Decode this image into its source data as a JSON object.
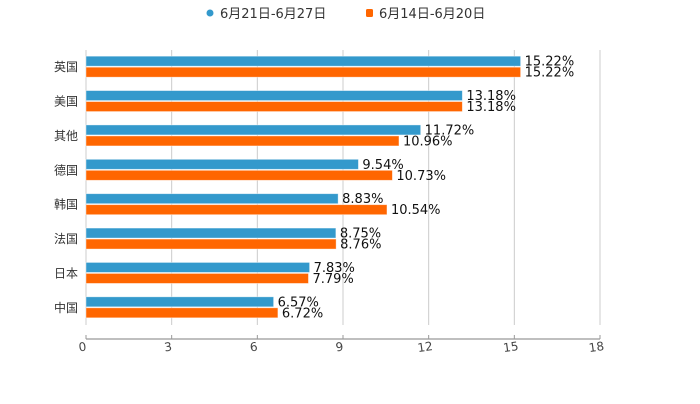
{
  "chart_data": {
    "type": "bar",
    "orientation": "horizontal",
    "categories": [
      "英国",
      "美国",
      "其他",
      "德国",
      "韩国",
      "法国",
      "日本",
      "中国"
    ],
    "series": [
      {
        "name": "6月21日-6月27日",
        "color": "#3399cc",
        "values": [
          15.22,
          13.18,
          11.72,
          9.54,
          8.83,
          8.75,
          7.83,
          6.57
        ],
        "labels": [
          "15.22%",
          "13.18%",
          "11.72%",
          "9.54%",
          "8.83%",
          "8.75%",
          "7.83%",
          "6.57%"
        ]
      },
      {
        "name": "6月14日-6月20日",
        "color": "#ff6600",
        "values": [
          15.22,
          13.18,
          10.96,
          10.73,
          10.54,
          8.76,
          7.79,
          6.72
        ],
        "labels": [
          "15.22%",
          "13.18%",
          "10.96%",
          "10.73%",
          "10.54%",
          "8.76%",
          "7.79%",
          "6.72%"
        ]
      }
    ],
    "xlim": [
      0,
      18
    ],
    "xticks": [
      "0",
      "3",
      "6",
      "9",
      "12",
      "15",
      "18"
    ],
    "grid": true,
    "legend": "top-center",
    "title": "",
    "xlabel": "",
    "ylabel": ""
  }
}
